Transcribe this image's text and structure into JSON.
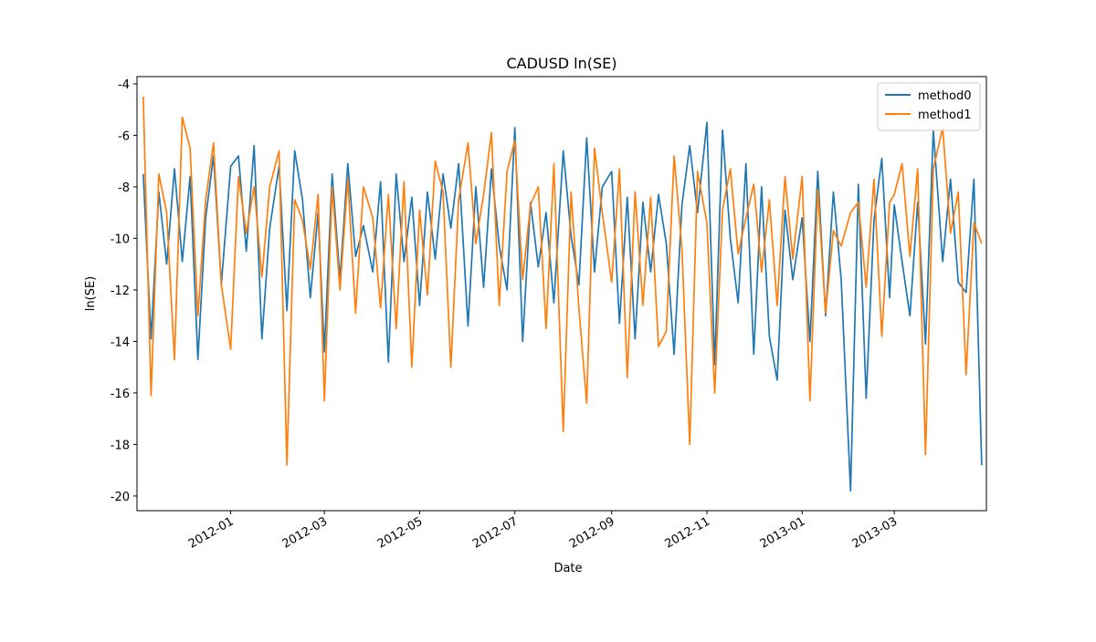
{
  "chart_data": {
    "type": "line",
    "title": "CADUSD ln(SE)",
    "x_label": "Date",
    "y_label": "ln(SE)",
    "x": [
      "2011-11-06",
      "2011-11-11",
      "2011-11-16",
      "2011-11-21",
      "2011-11-26",
      "2011-12-01",
      "2011-12-06",
      "2011-12-11",
      "2011-12-16",
      "2011-12-21",
      "2011-12-26",
      "2012-01-01",
      "2012-01-06",
      "2012-01-11",
      "2012-01-16",
      "2012-01-21",
      "2012-01-26",
      "2012-02-01",
      "2012-02-06",
      "2012-02-11",
      "2012-02-16",
      "2012-02-21",
      "2012-02-26",
      "2012-03-01",
      "2012-03-06",
      "2012-03-11",
      "2012-03-16",
      "2012-03-21",
      "2012-03-26",
      "2012-04-01",
      "2012-04-06",
      "2012-04-11",
      "2012-04-16",
      "2012-04-21",
      "2012-04-26",
      "2012-05-01",
      "2012-05-06",
      "2012-05-11",
      "2012-05-16",
      "2012-05-21",
      "2012-05-26",
      "2012-06-01",
      "2012-06-06",
      "2012-06-11",
      "2012-06-16",
      "2012-06-21",
      "2012-06-26",
      "2012-07-01",
      "2012-07-06",
      "2012-07-11",
      "2012-07-16",
      "2012-07-21",
      "2012-07-26",
      "2012-08-01",
      "2012-08-06",
      "2012-08-11",
      "2012-08-16",
      "2012-08-21",
      "2012-08-26",
      "2012-09-01",
      "2012-09-06",
      "2012-09-11",
      "2012-09-16",
      "2012-09-21",
      "2012-09-26",
      "2012-10-01",
      "2012-10-06",
      "2012-10-11",
      "2012-10-16",
      "2012-10-21",
      "2012-10-26",
      "2012-11-01",
      "2012-11-06",
      "2012-11-11",
      "2012-11-16",
      "2012-11-21",
      "2012-11-26",
      "2012-12-01",
      "2012-12-06",
      "2012-12-11",
      "2012-12-16",
      "2012-12-21",
      "2012-12-26",
      "2013-01-01",
      "2013-01-06",
      "2013-01-11",
      "2013-01-16",
      "2013-01-21",
      "2013-01-26",
      "2013-02-01",
      "2013-02-06",
      "2013-02-11",
      "2013-02-16",
      "2013-02-21",
      "2013-02-26",
      "2013-03-01",
      "2013-03-06",
      "2013-03-11",
      "2013-03-16",
      "2013-03-21",
      "2013-03-26",
      "2013-04-01",
      "2013-04-06",
      "2013-04-11",
      "2013-04-16",
      "2013-04-21",
      "2013-04-26"
    ],
    "series": [
      {
        "name": "method0",
        "color": "#1f77b4",
        "values": [
          -7.5,
          -13.9,
          -8.2,
          -11.0,
          -7.3,
          -10.9,
          -7.6,
          -14.7,
          -9.2,
          -6.8,
          -11.8,
          -7.2,
          -6.8,
          -10.5,
          -6.4,
          -13.9,
          -9.6,
          -7.2,
          -12.8,
          -6.6,
          -8.5,
          -12.3,
          -9.0,
          -14.4,
          -7.5,
          -11.6,
          -7.1,
          -10.7,
          -9.5,
          -11.3,
          -7.8,
          -14.8,
          -7.5,
          -10.9,
          -8.4,
          -12.6,
          -8.2,
          -10.8,
          -7.5,
          -9.6,
          -7.1,
          -13.4,
          -8.0,
          -11.9,
          -7.3,
          -10.3,
          -12.0,
          -5.7,
          -14.0,
          -8.6,
          -11.1,
          -9.0,
          -12.5,
          -6.6,
          -9.9,
          -11.8,
          -6.1,
          -11.3,
          -8.0,
          -7.4,
          -13.3,
          -8.4,
          -13.9,
          -8.6,
          -11.3,
          -8.3,
          -10.2,
          -14.5,
          -8.7,
          -6.4,
          -9.0,
          -5.5,
          -14.9,
          -5.8,
          -10.0,
          -12.5,
          -7.1,
          -14.5,
          -8.0,
          -13.8,
          -15.5,
          -8.9,
          -11.6,
          -9.2,
          -14.0,
          -7.4,
          -13.0,
          -8.2,
          -11.6,
          -19.8,
          -7.9,
          -16.2,
          -9.3,
          -6.9,
          -12.3,
          -8.7,
          -10.9,
          -13.0,
          -8.6,
          -14.1,
          -5.8,
          -10.9,
          -7.7,
          -11.7,
          -12.1,
          -7.7,
          -18.8
        ]
      },
      {
        "name": "method1",
        "color": "#ff7f0e",
        "values": [
          -4.5,
          -16.1,
          -7.5,
          -9.0,
          -14.7,
          -5.3,
          -6.5,
          -13.0,
          -8.5,
          -6.3,
          -11.8,
          -14.3,
          -7.6,
          -9.8,
          -8.0,
          -11.5,
          -8.0,
          -6.6,
          -18.8,
          -8.5,
          -9.3,
          -11.2,
          -8.3,
          -16.3,
          -8.0,
          -12.0,
          -7.7,
          -12.9,
          -8.0,
          -9.2,
          -12.7,
          -8.3,
          -13.5,
          -7.8,
          -15.0,
          -8.9,
          -12.2,
          -7.0,
          -8.2,
          -15.0,
          -8.5,
          -6.3,
          -10.2,
          -8.3,
          -5.9,
          -12.6,
          -7.4,
          -6.2,
          -11.6,
          -8.7,
          -8.0,
          -13.5,
          -7.1,
          -17.5,
          -8.2,
          -12.7,
          -16.4,
          -6.5,
          -9.0,
          -11.7,
          -7.3,
          -15.4,
          -8.2,
          -12.6,
          -8.4,
          -14.2,
          -13.6,
          -6.8,
          -10.4,
          -18.0,
          -7.4,
          -9.4,
          -16.0,
          -8.9,
          -7.3,
          -10.6,
          -9.2,
          -7.9,
          -11.3,
          -8.5,
          -12.6,
          -7.6,
          -10.8,
          -7.6,
          -16.3,
          -8.1,
          -12.9,
          -9.7,
          -10.3,
          -9.0,
          -8.6,
          -11.9,
          -7.7,
          -13.8,
          -8.6,
          -8.3,
          -7.1,
          -10.7,
          -7.3,
          -18.4,
          -7.3,
          -5.7,
          -9.8,
          -8.2,
          -15.3,
          -9.4,
          -10.2
        ]
      }
    ],
    "xlim": [
      "2011-11-02",
      "2013-04-29"
    ],
    "xticks": [
      {
        "value": "2012-01-01",
        "label": "2012-01"
      },
      {
        "value": "2012-03-01",
        "label": "2012-03"
      },
      {
        "value": "2012-05-01",
        "label": "2012-05"
      },
      {
        "value": "2012-07-01",
        "label": "2012-07"
      },
      {
        "value": "2012-09-01",
        "label": "2012-09"
      },
      {
        "value": "2012-11-01",
        "label": "2012-11"
      },
      {
        "value": "2013-01-01",
        "label": "2013-01"
      },
      {
        "value": "2013-03-01",
        "label": "2013-03"
      }
    ],
    "ylim": [
      -20.57,
      -3.72
    ],
    "yticks": [
      -20,
      -18,
      -16,
      -14,
      -12,
      -10,
      -8,
      -6,
      -4
    ],
    "legend": "upper right",
    "grid": false
  }
}
